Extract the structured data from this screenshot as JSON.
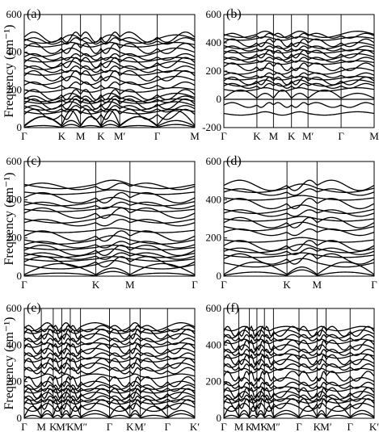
{
  "chart_data": [
    {
      "type": "line",
      "panel_label": "(a)",
      "ylabel": "Frequency (cm⁻¹)",
      "ylim": [
        0,
        600
      ],
      "yticks": [
        0,
        200,
        400,
        600
      ],
      "path_labels": [
        "Γ",
        "K",
        "M",
        "K",
        "M′",
        "Γ",
        "M"
      ],
      "path_positions": [
        0,
        0.22,
        0.33,
        0.45,
        0.56,
        0.78,
        1.0
      ],
      "band_levels": [
        10,
        35,
        55,
        70,
        85,
        100,
        115,
        125,
        140,
        150,
        160,
        175,
        200,
        225,
        250,
        275,
        290,
        310,
        330,
        345,
        360,
        375,
        400,
        420,
        440,
        460,
        470,
        480
      ]
    },
    {
      "type": "line",
      "panel_label": "(b)",
      "ylabel": "",
      "ylim": [
        -200,
        600
      ],
      "yticks": [
        -200,
        0,
        200,
        400,
        600
      ],
      "path_labels": [
        "Γ",
        "K",
        "M",
        "K",
        "M′",
        "Γ",
        "M"
      ],
      "path_positions": [
        0,
        0.22,
        0.33,
        0.45,
        0.56,
        0.78,
        1.0
      ],
      "band_levels": [
        -100,
        -40,
        0,
        40,
        70,
        95,
        115,
        130,
        150,
        170,
        200,
        230,
        260,
        280,
        300,
        320,
        340,
        360,
        380,
        400,
        430,
        450,
        460
      ]
    },
    {
      "type": "line",
      "panel_label": "(c)",
      "ylabel": "Frequency (cm⁻¹)",
      "ylim": [
        0,
        600
      ],
      "yticks": [
        0,
        200,
        400,
        600
      ],
      "path_labels": [
        "Γ",
        "K",
        "M",
        "Γ"
      ],
      "path_positions": [
        0,
        0.42,
        0.62,
        1.0
      ],
      "band_levels": [
        15,
        40,
        60,
        75,
        90,
        105,
        120,
        135,
        150,
        165,
        190,
        210,
        240,
        280,
        300,
        330,
        350,
        370,
        390,
        410,
        440,
        470,
        480
      ]
    },
    {
      "type": "line",
      "panel_label": "(d)",
      "ylabel": "",
      "ylim": [
        0,
        600
      ],
      "yticks": [
        0,
        200,
        400,
        600
      ],
      "path_labels": [
        "Γ",
        "K",
        "M",
        "Γ"
      ],
      "path_positions": [
        0,
        0.42,
        0.62,
        1.0
      ],
      "band_levels": [
        20,
        45,
        70,
        90,
        110,
        130,
        145,
        160,
        190,
        230,
        260,
        280,
        300,
        330,
        350,
        380,
        410,
        440,
        460,
        475
      ]
    },
    {
      "type": "line",
      "panel_label": "(e)",
      "ylabel": "Frequency (cm⁻¹)",
      "ylim": [
        0,
        600
      ],
      "yticks": [
        0,
        200,
        400,
        600
      ],
      "path_labels": [
        "Γ",
        "M",
        "K",
        "M′",
        "K",
        "M″",
        "Γ",
        "K",
        "M′",
        "Γ",
        "K′"
      ],
      "path_positions": [
        0,
        0.1,
        0.17,
        0.22,
        0.27,
        0.33,
        0.5,
        0.62,
        0.68,
        0.84,
        1.0
      ],
      "band_levels": [
        15,
        40,
        60,
        75,
        90,
        105,
        120,
        135,
        150,
        165,
        180,
        200,
        230,
        260,
        280,
        300,
        320,
        340,
        360,
        380,
        400,
        420,
        440,
        460,
        475,
        490,
        500
      ]
    },
    {
      "type": "line",
      "panel_label": "(f)",
      "ylabel": "",
      "ylim": [
        0,
        600
      ],
      "yticks": [
        0,
        200,
        400,
        600
      ],
      "path_labels": [
        "Γ",
        "M",
        "K",
        "M′",
        "K",
        "M″",
        "Γ",
        "K",
        "M′",
        "Γ",
        "K′"
      ],
      "path_positions": [
        0,
        0.1,
        0.17,
        0.22,
        0.27,
        0.33,
        0.5,
        0.62,
        0.68,
        0.84,
        1.0
      ],
      "band_levels": [
        15,
        40,
        60,
        80,
        95,
        110,
        125,
        140,
        160,
        180,
        200,
        230,
        260,
        280,
        300,
        320,
        340,
        360,
        380,
        400,
        420,
        440,
        460,
        475,
        490
      ]
    }
  ]
}
